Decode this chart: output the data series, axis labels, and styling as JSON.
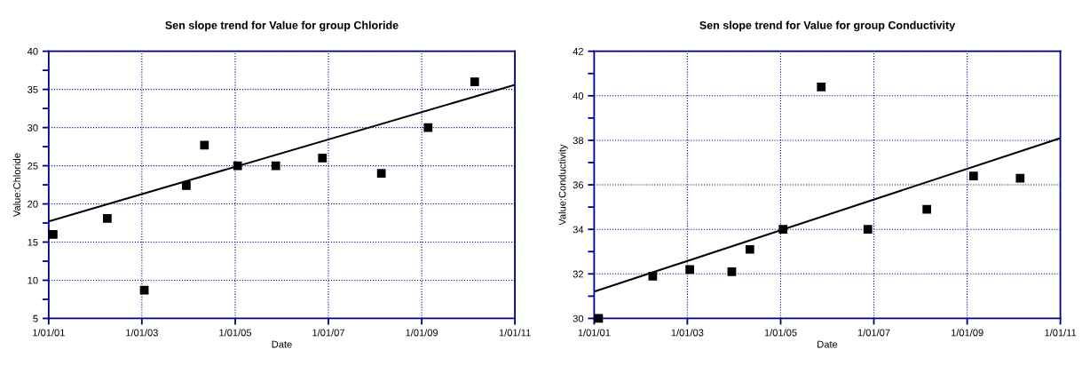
{
  "chart_data": [
    {
      "type": "scatter",
      "title": "Sen slope trend for Value for group Chloride",
      "xlabel": "Date",
      "ylabel": "Value:Chloride",
      "marker": "square",
      "grid": true,
      "legend": false,
      "xlim": [
        "2001-01-01",
        "2011-01-01"
      ],
      "ylim": [
        5,
        40
      ],
      "xticks": [
        {
          "value": "2001-01-01",
          "label": "1/01/01"
        },
        {
          "value": "2003-01-01",
          "label": "1/01/03"
        },
        {
          "value": "2005-01-01",
          "label": "1/01/05"
        },
        {
          "value": "2007-01-01",
          "label": "1/01/07"
        },
        {
          "value": "2009-01-01",
          "label": "1/01/09"
        },
        {
          "value": "2011-01-01",
          "label": "1/01/11"
        }
      ],
      "yticks": [
        5,
        {
          "value": 7.5,
          "label": null
        },
        10,
        {
          "value": 12.5,
          "label": null
        },
        15,
        {
          "value": 17.5,
          "label": null
        },
        20,
        {
          "value": 22.5,
          "label": null
        },
        25,
        {
          "value": 27.5,
          "label": null
        },
        30,
        {
          "value": 32.5,
          "label": null
        },
        35,
        {
          "value": 37.5,
          "label": null
        },
        40
      ],
      "series": [
        {
          "color": "#000000",
          "x": [
            "2001-02-05",
            "2002-04-05",
            "2003-01-20",
            "2003-12-15",
            "2004-05-05",
            "2005-01-20",
            "2005-11-15",
            "2006-11-15",
            "2008-02-20",
            "2009-02-20",
            "2010-02-20"
          ],
          "values": [
            16,
            18.1,
            8.7,
            22.4,
            27.7,
            25,
            25,
            26,
            24,
            30,
            36
          ]
        },
        {
          "type": "line",
          "color": "#000000",
          "marker": "none",
          "x": [
            "2001-01-01",
            "2011-01-01"
          ],
          "values": [
            17.7,
            35.6
          ]
        }
      ]
    },
    {
      "type": "scatter",
      "title": "Sen slope trend for Value for group Conductivity",
      "xlabel": "Date",
      "ylabel": "Value:Conductivity",
      "marker": "square",
      "grid": true,
      "legend": false,
      "xlim": [
        "2001-01-01",
        "2011-01-01"
      ],
      "ylim": [
        30,
        42
      ],
      "xticks": [
        {
          "value": "2001-01-01",
          "label": "1/01/01"
        },
        {
          "value": "2003-01-01",
          "label": "1/01/03"
        },
        {
          "value": "2005-01-01",
          "label": "1/01/05"
        },
        {
          "value": "2007-01-01",
          "label": "1/01/07"
        },
        {
          "value": "2009-01-01",
          "label": "1/01/09"
        },
        {
          "value": "2011-01-01",
          "label": "1/01/11"
        }
      ],
      "yticks": [
        30,
        {
          "value": 31,
          "label": null
        },
        32,
        {
          "value": 33,
          "label": null
        },
        34,
        {
          "value": 35,
          "label": null
        },
        36,
        {
          "value": 37,
          "label": null
        },
        38,
        {
          "value": 39,
          "label": null
        },
        40,
        {
          "value": 41,
          "label": null
        },
        42
      ],
      "series": [
        {
          "color": "#000000",
          "x": [
            "2001-02-05",
            "2002-04-05",
            "2003-01-20",
            "2003-12-15",
            "2004-05-05",
            "2005-01-20",
            "2005-11-15",
            "2006-11-15",
            "2008-02-20",
            "2009-02-20",
            "2010-02-20"
          ],
          "values": [
            30.0,
            31.9,
            32.2,
            32.1,
            33.1,
            34.0,
            40.4,
            34.0,
            34.9,
            36.4,
            36.3
          ]
        },
        {
          "type": "line",
          "color": "#000000",
          "marker": "none",
          "x": [
            "2001-01-01",
            "2011-01-01"
          ],
          "values": [
            31.2,
            38.1
          ]
        }
      ]
    }
  ]
}
